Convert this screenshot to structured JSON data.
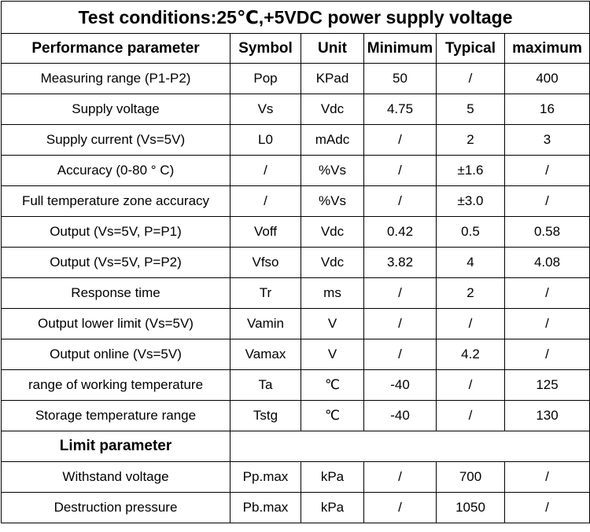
{
  "title": "Test conditions:25℃,+5VDC power supply voltage",
  "headers": [
    "Performance parameter",
    "Symbol",
    "Unit",
    "Minimum",
    "Typical",
    "maximum"
  ],
  "rows": [
    [
      "Measuring range (P1-P2)",
      "Pop",
      "KPad",
      "50",
      "/",
      "400"
    ],
    [
      "Supply voltage",
      "Vs",
      "Vdc",
      "4.75",
      "5",
      "16"
    ],
    [
      "Supply current (Vs=5V)",
      "L0",
      "mAdc",
      "/",
      "2",
      "3"
    ],
    [
      "Accuracy (0-80 ° C)",
      "/",
      "%Vs",
      "/",
      "±1.6",
      "/"
    ],
    [
      "Full temperature zone accuracy",
      "/",
      "%Vs",
      "/",
      "±3.0",
      "/"
    ],
    [
      "Output (Vs=5V, P=P1)",
      "Voff",
      "Vdc",
      "0.42",
      "0.5",
      "0.58"
    ],
    [
      "Output (Vs=5V, P=P2)",
      "Vfso",
      "Vdc",
      "3.82",
      "4",
      "4.08"
    ],
    [
      "Response time",
      "Tr",
      "ms",
      "/",
      "2",
      "/"
    ],
    [
      "Output lower limit (Vs=5V)",
      "Vamin",
      "V",
      "/",
      "/",
      "/"
    ],
    [
      "Output online (Vs=5V)",
      "Vamax",
      "V",
      "/",
      "4.2",
      "/"
    ],
    [
      "range of working temperature",
      "Ta",
      "℃",
      "-40",
      "/",
      "125"
    ],
    [
      "Storage temperature range",
      "Tstg",
      "℃",
      "-40",
      "/",
      "130"
    ]
  ],
  "limit_section": {
    "label": "Limit parameter",
    "rows": [
      [
        "Withstand voltage",
        "Pp.max",
        "kPa",
        "/",
        "700",
        "/"
      ],
      [
        "Destruction pressure",
        "Pb.max",
        "kPa",
        "/",
        "1050",
        "/"
      ]
    ]
  }
}
